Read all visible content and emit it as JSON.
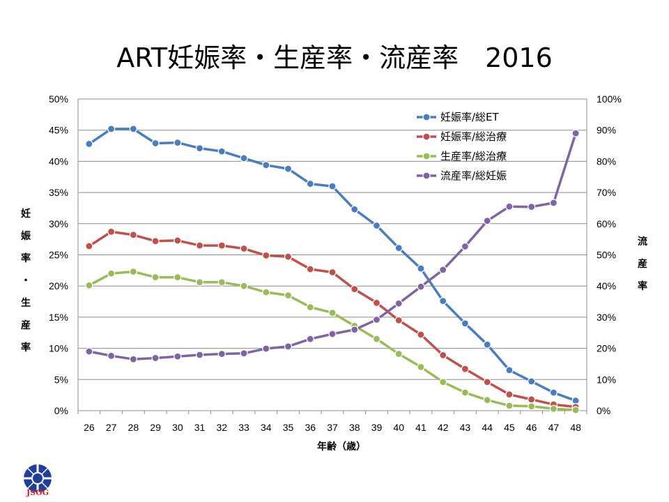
{
  "title": "ART妊娠率・生産率・流産率　2016",
  "logo_text": "JSOG",
  "colors": {
    "blue": "#4a7cc3",
    "red": "#c0504d",
    "green": "#9bbb59",
    "purple": "#8064a2"
  },
  "chart_data": {
    "type": "line",
    "title": "ART妊娠率・生産率・流産率　2016",
    "xlabel": "年齢（歳）",
    "ylabel_left": "妊娠率・生産率",
    "ylabel_right": "流産率",
    "x": [
      26,
      27,
      28,
      29,
      30,
      31,
      32,
      33,
      34,
      35,
      36,
      37,
      38,
      39,
      40,
      41,
      42,
      43,
      44,
      45,
      46,
      47,
      48
    ],
    "y_left_range": [
      0,
      50
    ],
    "y_left_ticks": [
      "0%",
      "5%",
      "10%",
      "15%",
      "20%",
      "25%",
      "30%",
      "35%",
      "40%",
      "45%",
      "50%"
    ],
    "y_right_range": [
      0,
      100
    ],
    "y_right_ticks": [
      "0%",
      "10%",
      "20%",
      "30%",
      "40%",
      "50%",
      "60%",
      "70%",
      "80%",
      "90%",
      "100%"
    ],
    "grid": true,
    "legend_position": "top-right",
    "series": [
      {
        "name": "妊娠率/総ET",
        "axis": "left",
        "color": "#4a7cc3",
        "values": [
          42.8,
          45.2,
          45.2,
          42.9,
          43.0,
          42.1,
          41.6,
          40.5,
          39.4,
          38.8,
          36.4,
          36.0,
          32.3,
          29.7,
          26.1,
          22.8,
          17.6,
          14.0,
          10.6,
          6.5,
          4.7,
          2.9,
          1.6
        ]
      },
      {
        "name": "妊娠率/総治療",
        "axis": "left",
        "color": "#c0504d",
        "values": [
          26.4,
          28.7,
          28.2,
          27.2,
          27.3,
          26.5,
          26.5,
          26.0,
          24.9,
          24.7,
          22.7,
          22.2,
          19.5,
          17.3,
          14.5,
          12.2,
          8.9,
          6.7,
          4.6,
          2.6,
          1.8,
          1.0,
          0.6
        ]
      },
      {
        "name": "生産率/総治療",
        "axis": "left",
        "color": "#9bbb59",
        "values": [
          20.1,
          22.0,
          22.3,
          21.4,
          21.4,
          20.6,
          20.6,
          20.0,
          19.0,
          18.5,
          16.6,
          15.7,
          13.6,
          11.5,
          9.1,
          7.0,
          4.6,
          2.9,
          1.7,
          0.8,
          0.7,
          0.3,
          0.1
        ]
      },
      {
        "name": "流産率/総妊娠",
        "axis": "right",
        "color": "#8064a2",
        "values": [
          19.0,
          17.6,
          16.5,
          16.9,
          17.4,
          17.9,
          18.2,
          18.4,
          19.9,
          20.6,
          23.0,
          24.6,
          26.0,
          29.2,
          34.4,
          39.8,
          45.2,
          52.7,
          60.9,
          65.5,
          65.4,
          66.7,
          89.0
        ]
      }
    ]
  }
}
